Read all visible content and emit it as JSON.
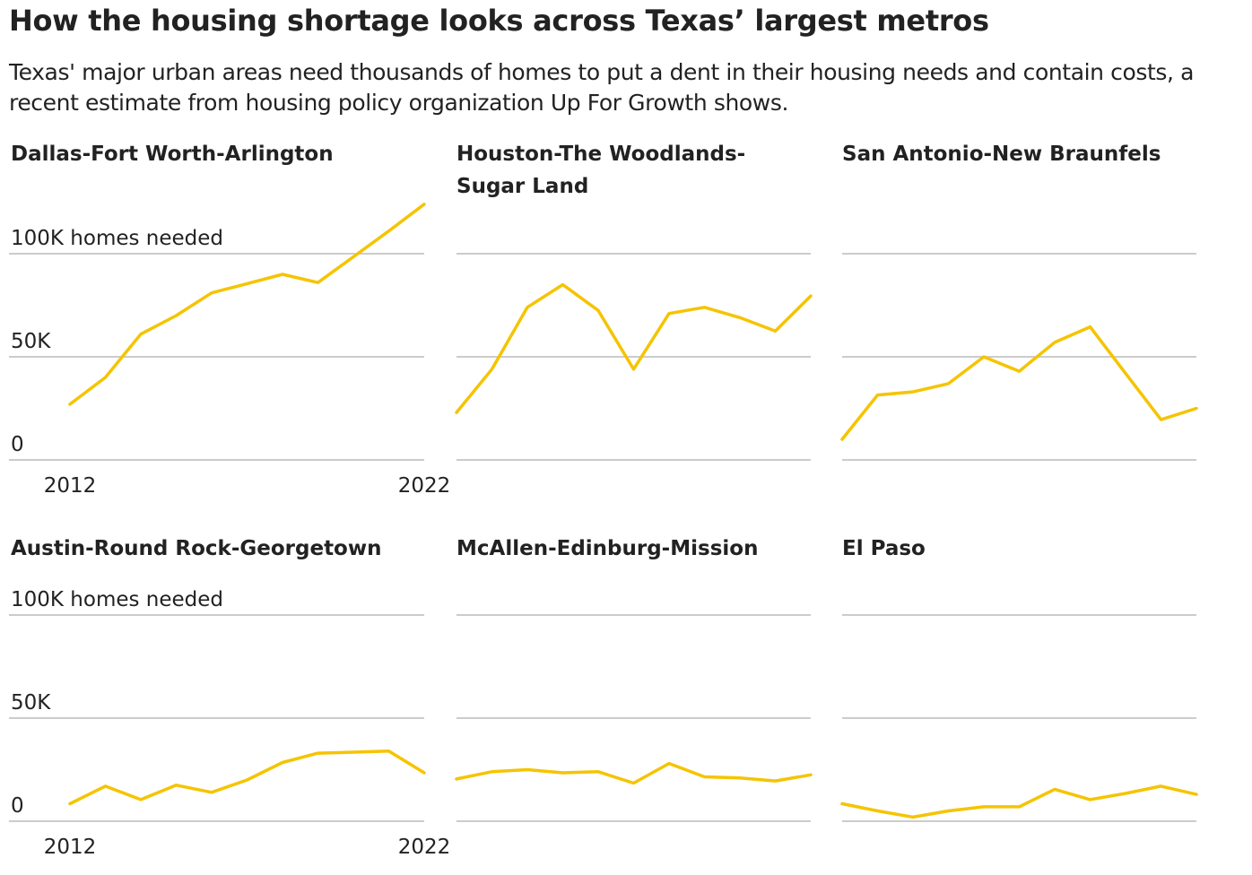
{
  "title": "How the housing shortage looks across Texas’ largest metros",
  "subtitle": "Texas' major urban areas need thousands of homes to put a dent in their housing needs and contain costs, a recent estimate from housing policy organization Up For Growth shows.",
  "colors": {
    "line": "#f5c400",
    "grid": "#cccccc",
    "text": "#222222"
  },
  "chart_data": [
    {
      "type": "line",
      "title": "Dallas-Fort Worth-Arlington",
      "x": [
        2012,
        2013,
        2014,
        2015,
        2016,
        2017,
        2018,
        2019,
        2020,
        2021,
        2022
      ],
      "series": [
        {
          "values": [
            27000,
            40000,
            61000,
            70000,
            81000,
            85500,
            90000,
            86000,
            98500,
            111000,
            124000
          ]
        }
      ],
      "ylim": [
        0,
        100000
      ],
      "yticks": [
        0,
        50000,
        100000
      ],
      "ytick_labels": [
        "0",
        "50K",
        "100K homes needed"
      ],
      "xtick_labels": [
        "2012",
        "2022"
      ],
      "grid": true
    },
    {
      "type": "line",
      "title": "Houston-The Woodlands-Sugar Land",
      "x": [
        2012,
        2013,
        2014,
        2015,
        2016,
        2017,
        2018,
        2019,
        2020,
        2021,
        2022
      ],
      "series": [
        {
          "values": [
            23000,
            44000,
            74000,
            85000,
            72500,
            44000,
            71000,
            74000,
            69000,
            62500,
            79500
          ]
        }
      ],
      "ylim": [
        0,
        100000
      ],
      "yticks": [
        0,
        50000,
        100000
      ],
      "grid": true
    },
    {
      "type": "line",
      "title": "San Antonio-New Braunfels",
      "x": [
        2012,
        2013,
        2014,
        2015,
        2016,
        2017,
        2018,
        2019,
        2020,
        2021,
        2022
      ],
      "series": [
        {
          "values": [
            10000,
            31500,
            33000,
            37000,
            50000,
            43000,
            57000,
            64500,
            42000,
            19500,
            25000
          ]
        }
      ],
      "ylim": [
        0,
        100000
      ],
      "yticks": [
        0,
        50000,
        100000
      ],
      "grid": true
    },
    {
      "type": "line",
      "title": "Austin-Round Rock-Georgetown",
      "x": [
        2012,
        2013,
        2014,
        2015,
        2016,
        2017,
        2018,
        2019,
        2020,
        2021,
        2022
      ],
      "series": [
        {
          "values": [
            8500,
            17000,
            10500,
            17500,
            14000,
            20000,
            28500,
            33000,
            33500,
            34000,
            23500
          ]
        }
      ],
      "ylim": [
        0,
        100000
      ],
      "yticks": [
        0,
        50000,
        100000
      ],
      "ytick_labels": [
        "0",
        "50K",
        "100K homes needed"
      ],
      "xtick_labels": [
        "2012",
        "2022"
      ],
      "grid": true
    },
    {
      "type": "line",
      "title": "McAllen-Edinburg-Mission",
      "x": [
        2012,
        2013,
        2014,
        2015,
        2016,
        2017,
        2018,
        2019,
        2020,
        2021,
        2022
      ],
      "series": [
        {
          "values": [
            20500,
            24000,
            25000,
            23500,
            24000,
            18500,
            28000,
            21500,
            21000,
            19500,
            22500
          ]
        }
      ],
      "ylim": [
        0,
        100000
      ],
      "yticks": [
        0,
        50000,
        100000
      ],
      "grid": true
    },
    {
      "type": "line",
      "title": "El Paso",
      "x": [
        2012,
        2013,
        2014,
        2015,
        2016,
        2017,
        2018,
        2019,
        2020,
        2021,
        2022
      ],
      "series": [
        {
          "values": [
            8500,
            5000,
            2000,
            5000,
            7000,
            7000,
            15500,
            10500,
            13500,
            17000,
            13000
          ]
        }
      ],
      "ylim": [
        0,
        100000
      ],
      "yticks": [
        0,
        50000,
        100000
      ],
      "grid": true
    }
  ]
}
